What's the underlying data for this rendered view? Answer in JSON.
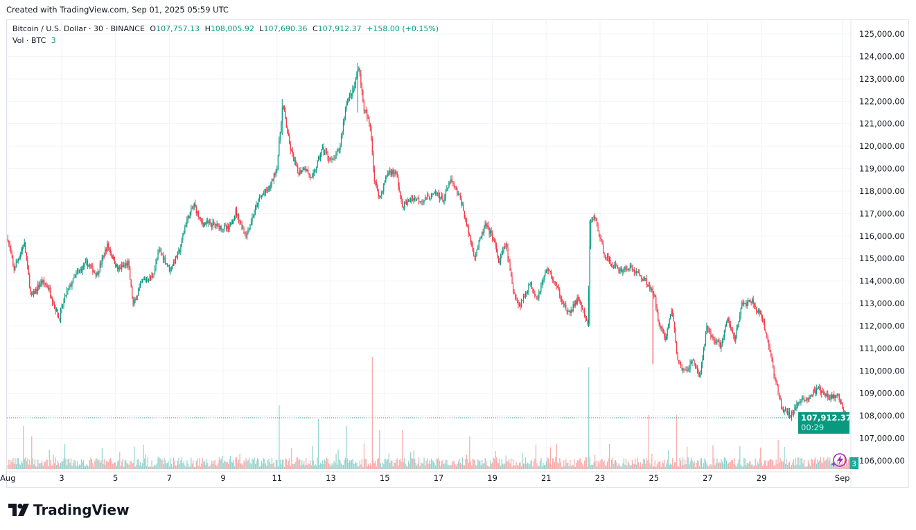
{
  "created_line": "Created with TradingView.com, Sep 01, 2025 05:59 UTC",
  "legend": {
    "symbol": "Bitcoin / U.S. Dollar · 30 · BINANCE",
    "o_label": "O",
    "o": "107,757.13",
    "h_label": "H",
    "h": "108,005.92",
    "l_label": "L",
    "l": "107,690.36",
    "c_label": "C",
    "c": "107,912.37",
    "change": "+158.00 (+0.15%)",
    "vol_label": "Vol · BTC",
    "vol": "3"
  },
  "current_price_label": {
    "price": "107,912.37",
    "countdown": "00:29"
  },
  "volume_badge": "3",
  "logo_text": "TradingView",
  "colors": {
    "up": "#089981",
    "down": "#f23645",
    "up_vol": "#92d2cc",
    "down_vol": "#f7a9a7",
    "grid": "#f0f3fa"
  },
  "chart_data": {
    "type": "candlestick",
    "symbol": "BTCUSD",
    "interval": "30",
    "x_unit": "day of August 2025 (32 = Sep 1)",
    "x_ticks": [
      {
        "day": 1,
        "label": "Aug"
      },
      {
        "day": 3,
        "label": "3"
      },
      {
        "day": 5,
        "label": "5"
      },
      {
        "day": 7,
        "label": "7"
      },
      {
        "day": 9,
        "label": "9"
      },
      {
        "day": 11,
        "label": "11"
      },
      {
        "day": 13,
        "label": "13"
      },
      {
        "day": 15,
        "label": "15"
      },
      {
        "day": 17,
        "label": "17"
      },
      {
        "day": 19,
        "label": "19"
      },
      {
        "day": 21,
        "label": "21"
      },
      {
        "day": 23,
        "label": "23"
      },
      {
        "day": 25,
        "label": "25"
      },
      {
        "day": 27,
        "label": "27"
      },
      {
        "day": 29,
        "label": "29"
      },
      {
        "day": 32,
        "label": "Sep"
      }
    ],
    "y_ticks": [
      "125,000.00",
      "124,000.00",
      "123,000.00",
      "122,000.00",
      "121,000.00",
      "120,000.00",
      "119,000.00",
      "118,000.00",
      "117,000.00",
      "116,000.00",
      "115,000.00",
      "114,000.00",
      "113,000.00",
      "112,000.00",
      "111,000.00",
      "110,000.00",
      "109,000.00",
      "108,000.00",
      "107,000.00",
      "106,000.00"
    ],
    "ylim": [
      106000,
      125000
    ],
    "xlim": [
      0.97,
      32.35
    ],
    "last_price": 107912.37,
    "price_path": [
      [
        1.0,
        115900
      ],
      [
        1.22,
        114500
      ],
      [
        1.61,
        115700
      ],
      [
        1.87,
        113250
      ],
      [
        2.25,
        114000
      ],
      [
        2.51,
        113700
      ],
      [
        2.9,
        112300
      ],
      [
        3.15,
        113400
      ],
      [
        3.54,
        114300
      ],
      [
        3.93,
        114800
      ],
      [
        4.31,
        114300
      ],
      [
        4.7,
        115600
      ],
      [
        5.09,
        114500
      ],
      [
        5.47,
        114800
      ],
      [
        5.65,
        112900
      ],
      [
        5.99,
        114000
      ],
      [
        6.37,
        114200
      ],
      [
        6.63,
        115400
      ],
      [
        7.02,
        114500
      ],
      [
        7.4,
        115400
      ],
      [
        7.61,
        116600
      ],
      [
        7.92,
        117400
      ],
      [
        8.17,
        116600
      ],
      [
        8.69,
        116500
      ],
      [
        9.2,
        116300
      ],
      [
        9.46,
        117100
      ],
      [
        9.85,
        116000
      ],
      [
        10.1,
        116900
      ],
      [
        10.36,
        117700
      ],
      [
        10.75,
        118200
      ],
      [
        11.0,
        119100
      ],
      [
        11.21,
        121900
      ],
      [
        11.47,
        120000
      ],
      [
        11.78,
        118800
      ],
      [
        12.03,
        119100
      ],
      [
        12.29,
        118500
      ],
      [
        12.68,
        119900
      ],
      [
        13.06,
        119300
      ],
      [
        13.32,
        119900
      ],
      [
        13.58,
        122000
      ],
      [
        13.84,
        122500
      ],
      [
        14.04,
        123600
      ],
      [
        14.22,
        121700
      ],
      [
        14.48,
        120800
      ],
      [
        14.61,
        118500
      ],
      [
        14.82,
        117700
      ],
      [
        15.13,
        118900
      ],
      [
        15.43,
        118800
      ],
      [
        15.64,
        117300
      ],
      [
        16.03,
        117700
      ],
      [
        16.42,
        117600
      ],
      [
        16.93,
        117900
      ],
      [
        17.19,
        117600
      ],
      [
        17.44,
        118500
      ],
      [
        17.83,
        117600
      ],
      [
        18.08,
        116300
      ],
      [
        18.34,
        115100
      ],
      [
        18.73,
        116500
      ],
      [
        19.04,
        115900
      ],
      [
        19.24,
        114800
      ],
      [
        19.5,
        115700
      ],
      [
        19.76,
        113600
      ],
      [
        20.01,
        112900
      ],
      [
        20.4,
        113900
      ],
      [
        20.66,
        113250
      ],
      [
        21.04,
        114600
      ],
      [
        21.43,
        113600
      ],
      [
        21.82,
        112500
      ],
      [
        22.2,
        113250
      ],
      [
        22.54,
        112000
      ],
      [
        22.64,
        116600
      ],
      [
        22.79,
        116900
      ],
      [
        23.1,
        115400
      ],
      [
        23.36,
        114800
      ],
      [
        23.75,
        114500
      ],
      [
        24.13,
        114600
      ],
      [
        24.52,
        114200
      ],
      [
        24.78,
        113900
      ],
      [
        25.03,
        113250
      ],
      [
        25.16,
        112300
      ],
      [
        25.42,
        111400
      ],
      [
        25.67,
        112800
      ],
      [
        25.88,
        110500
      ],
      [
        26.14,
        109900
      ],
      [
        26.45,
        110500
      ],
      [
        26.71,
        109700
      ],
      [
        26.96,
        111900
      ],
      [
        27.22,
        111400
      ],
      [
        27.48,
        111100
      ],
      [
        27.74,
        112300
      ],
      [
        28.0,
        111400
      ],
      [
        28.25,
        112900
      ],
      [
        28.64,
        113100
      ],
      [
        29.02,
        112300
      ],
      [
        29.28,
        111100
      ],
      [
        29.49,
        109700
      ],
      [
        29.75,
        108300
      ],
      [
        30.06,
        108000
      ],
      [
        30.31,
        108500
      ],
      [
        30.7,
        108800
      ],
      [
        31.09,
        109200
      ],
      [
        31.47,
        108800
      ],
      [
        31.86,
        108900
      ],
      [
        32.07,
        108000
      ],
      [
        32.25,
        107912
      ]
    ],
    "wicks": [
      [
        22.6,
        112000,
        116700
      ],
      [
        24.98,
        110300,
        113800
      ],
      [
        14.0,
        121500,
        123700
      ],
      [
        11.2,
        120500,
        122100
      ]
    ],
    "volume_spikes_btc": [
      [
        1.56,
        1550
      ],
      [
        1.87,
        1180
      ],
      [
        11.09,
        2300
      ],
      [
        12.55,
        1800
      ],
      [
        13.58,
        1550
      ],
      [
        14.54,
        4050
      ],
      [
        14.82,
        1400
      ],
      [
        15.64,
        1400
      ],
      [
        18.16,
        1180
      ],
      [
        22.58,
        3670
      ],
      [
        24.82,
        1950
      ],
      [
        25.86,
        1950
      ],
      [
        29.6,
        1050
      ]
    ],
    "volume_baseline_btc": 250
  }
}
